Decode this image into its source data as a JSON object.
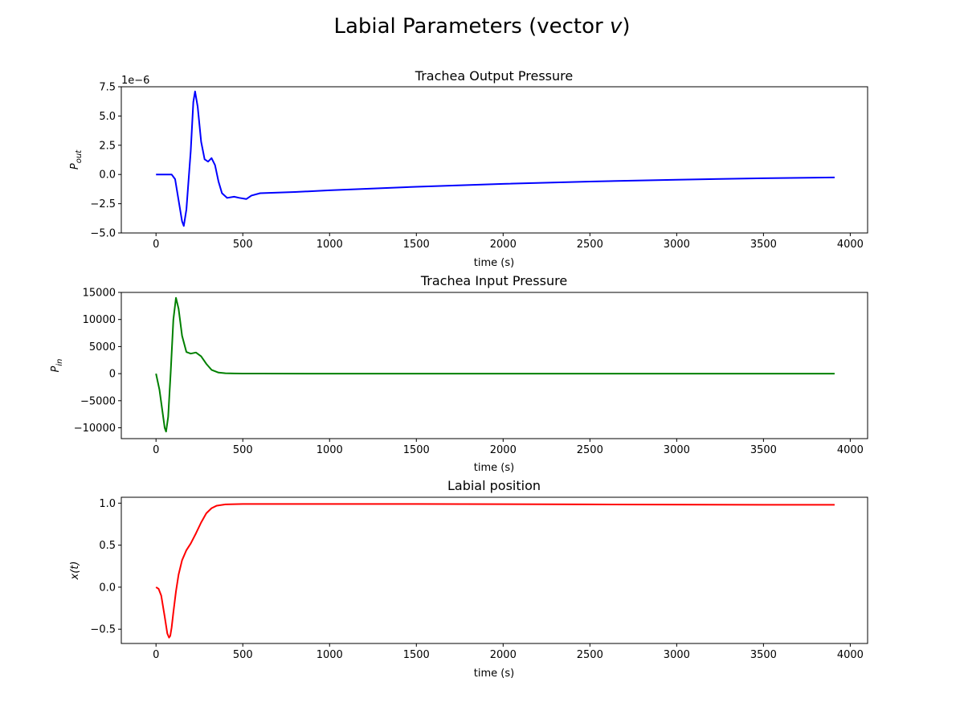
{
  "figure": {
    "title": "Labial Parameters (vector v)",
    "title_main": "Labial Parameters (vector ",
    "title_var": "v",
    "title_end": ")"
  },
  "chart_data": [
    {
      "type": "line",
      "title": "Trachea Output Pressure",
      "xlabel": "time (s)",
      "ylabel_main": "P",
      "ylabel_sub": "out",
      "y_offset_label": "1e−6",
      "color": "#0000ff",
      "xlim": [
        -200,
        4100
      ],
      "ylim": [
        -5.0,
        7.5
      ],
      "xticks": [
        0,
        500,
        1000,
        1500,
        2000,
        2500,
        3000,
        3500,
        4000
      ],
      "yticks": [
        -5.0,
        -2.5,
        0.0,
        2.5,
        5.0,
        7.5
      ],
      "ytick_labels": [
        "−5.0",
        "−2.5",
        "0.0",
        "2.5",
        "5.0",
        "7.5"
      ],
      "series": [
        {
          "x": [
            0,
            90,
            110,
            130,
            150,
            160,
            175,
            200,
            215,
            225,
            240,
            260,
            280,
            300,
            320,
            340,
            360,
            380,
            410,
            450,
            480,
            520,
            550,
            600,
            800,
            1000,
            1500,
            2000,
            2500,
            3000,
            3500,
            3910
          ],
          "y": [
            0,
            0,
            -0.4,
            -2.2,
            -4.0,
            -4.4,
            -3.0,
            2.0,
            6.2,
            7.1,
            5.8,
            2.8,
            1.3,
            1.1,
            1.4,
            0.8,
            -0.6,
            -1.6,
            -2.0,
            -1.9,
            -2.0,
            -2.1,
            -1.8,
            -1.6,
            -1.5,
            -1.35,
            -1.05,
            -0.8,
            -0.6,
            -0.45,
            -0.32,
            -0.25
          ]
        }
      ]
    },
    {
      "type": "line",
      "title": "Trachea Input Pressure",
      "xlabel": "time (s)",
      "ylabel_main": "P",
      "ylabel_sub": "in",
      "y_offset_label": "",
      "color": "#008000",
      "xlim": [
        -200,
        4100
      ],
      "ylim": [
        -12000,
        15000
      ],
      "xticks": [
        0,
        500,
        1000,
        1500,
        2000,
        2500,
        3000,
        3500,
        4000
      ],
      "yticks": [
        -10000,
        -5000,
        0,
        5000,
        10000,
        15000
      ],
      "ytick_labels": [
        "−10000",
        "−5000",
        "0",
        "5000",
        "10000",
        "15000"
      ],
      "series": [
        {
          "x": [
            0,
            20,
            35,
            50,
            58,
            70,
            85,
            100,
            115,
            130,
            150,
            175,
            200,
            230,
            260,
            290,
            320,
            360,
            400,
            450,
            500,
            600,
            1000,
            2000,
            3000,
            3910
          ],
          "y": [
            0,
            -3000,
            -6500,
            -10000,
            -10700,
            -8000,
            500,
            10000,
            14000,
            12000,
            7000,
            4000,
            3700,
            3900,
            3200,
            1800,
            700,
            200,
            80,
            40,
            20,
            10,
            0,
            0,
            0,
            0
          ]
        }
      ]
    },
    {
      "type": "line",
      "title": "Labial position",
      "xlabel": "time (s)",
      "ylabel": "x(t)",
      "y_offset_label": "",
      "color": "#ff0000",
      "xlim": [
        -200,
        4100
      ],
      "ylim": [
        -0.67,
        1.07
      ],
      "xticks": [
        0,
        500,
        1000,
        1500,
        2000,
        2500,
        3000,
        3500,
        4000
      ],
      "yticks": [
        -0.5,
        0.0,
        0.5,
        1.0
      ],
      "ytick_labels": [
        "−0.5",
        "0.0",
        "0.5",
        "1.0"
      ],
      "series": [
        {
          "x": [
            0,
            15,
            30,
            50,
            65,
            75,
            82,
            90,
            100,
            115,
            130,
            150,
            175,
            200,
            230,
            260,
            290,
            320,
            350,
            400,
            500,
            800,
            1500,
            2500,
            3500,
            3910
          ],
          "y": [
            0,
            -0.02,
            -0.1,
            -0.35,
            -0.55,
            -0.6,
            -0.58,
            -0.48,
            -0.3,
            -0.05,
            0.15,
            0.32,
            0.44,
            0.52,
            0.64,
            0.77,
            0.88,
            0.94,
            0.97,
            0.985,
            0.99,
            0.99,
            0.99,
            0.985,
            0.98,
            0.98
          ]
        }
      ]
    }
  ]
}
